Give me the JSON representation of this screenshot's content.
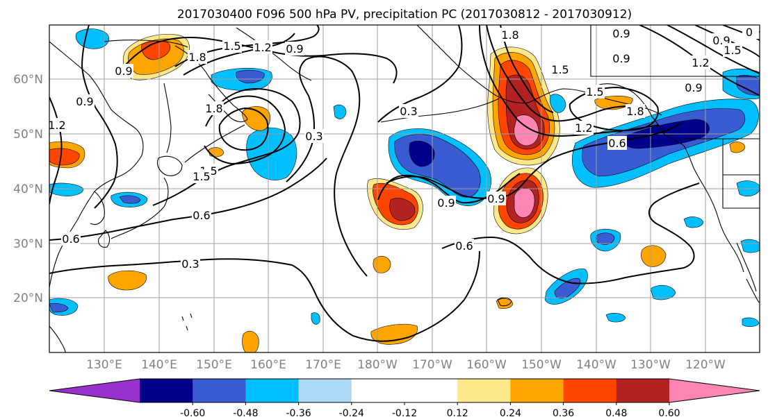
{
  "title": "2017030400 F096 500 hPa PV, precipitation PC (2017030812 - 2017030912)",
  "lat_labels": [
    "60°N",
    "50°N",
    "40°N",
    "30°N",
    "20°N"
  ],
  "lon_labels": [
    "130°E",
    "140°E",
    "150°E",
    "160°E",
    "170°E",
    "180°W",
    "170°W",
    "160°W",
    "150°W",
    "140°W",
    "130°W",
    "120°W"
  ],
  "colorbar": {
    "colors": [
      "#9932cc",
      "#00008b",
      "#3a5bd1",
      "#00bfff",
      "#add8f6",
      "#ffffff",
      "#ffffff",
      "#ffe88a",
      "#ffa500",
      "#ff4500",
      "#b22222",
      "#ff85b5"
    ],
    "tick_labels": [
      "-0.60",
      "-0.48",
      "-0.36",
      "-0.24",
      "-0.12",
      "0.12",
      "0.24",
      "0.36",
      "0.48",
      "0.60"
    ]
  },
  "contour_labels": [
    "0.9",
    "1.5",
    "1.2",
    "0.9",
    "1.8",
    "0.9",
    "1.2",
    "1.5",
    "1.8",
    "0.3",
    "1.5",
    "0.6",
    "0.6",
    "0.3",
    "0.3",
    "1.8",
    "1.5",
    "0.9",
    "0.9",
    "0.9",
    "0.6",
    "1.2",
    "0.6",
    "1.5",
    "0.9",
    "0.9",
    "1.2",
    "1.8",
    "0.9",
    "0",
    "1.5"
  ],
  "colors": {
    "pv_contour": "#000000",
    "grid": "#9e9e9e",
    "coastline": "#000000"
  }
}
